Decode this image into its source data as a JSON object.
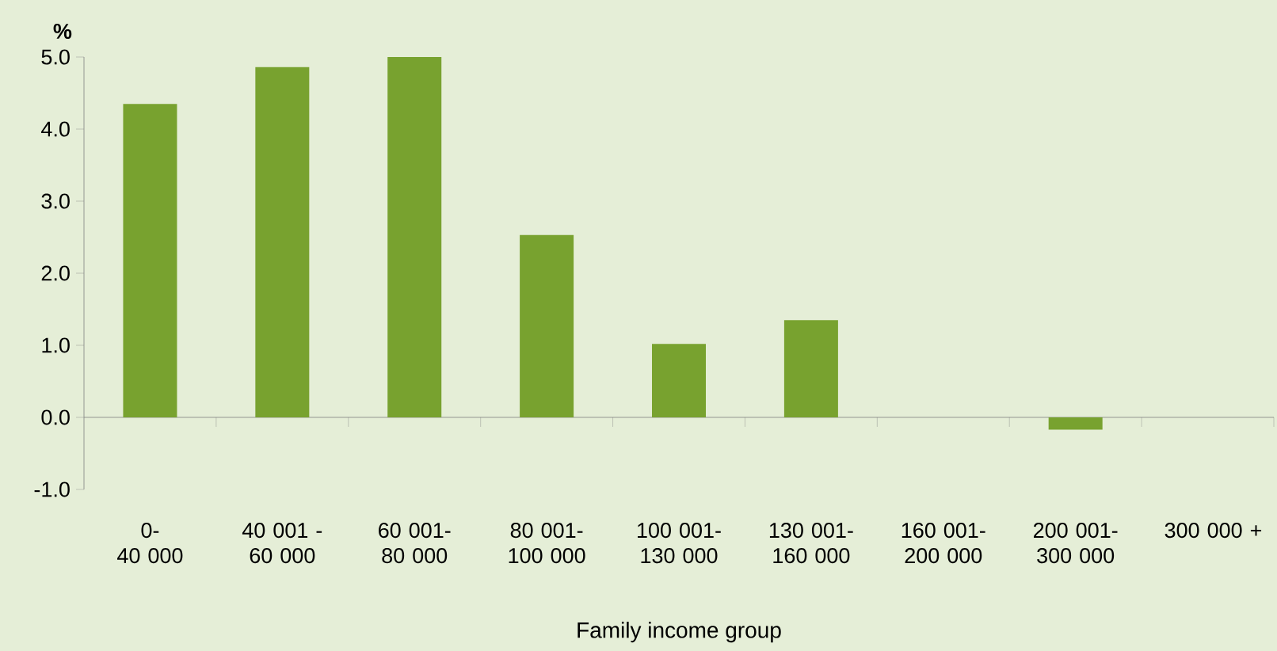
{
  "chart_data": {
    "type": "bar",
    "ylabel": "%",
    "xlabel": "Family income group",
    "categories": [
      "0- 40 000",
      "40 001 - 60 000",
      "60 001- 80 000",
      "80 001- 100 000",
      "100 001- 130 000",
      "130 001- 160 000",
      "160 001- 200 000",
      "200 001- 300 000",
      "300 000 +"
    ],
    "values": [
      4.35,
      4.86,
      5.0,
      2.53,
      1.02,
      1.35,
      0,
      -0.17,
      0
    ],
    "color": "#78a22f",
    "ylim": [
      -1.0,
      5.0
    ],
    "yticks": [
      {
        "value": -1,
        "label": "-1.0"
      },
      {
        "value": 0,
        "label": "0.0"
      },
      {
        "value": 1,
        "label": "1.0"
      },
      {
        "value": 2,
        "label": "2.0"
      },
      {
        "value": 3,
        "label": "3.0"
      },
      {
        "value": 4,
        "label": "4.0"
      },
      {
        "value": 5,
        "label": "5.0"
      }
    ]
  }
}
